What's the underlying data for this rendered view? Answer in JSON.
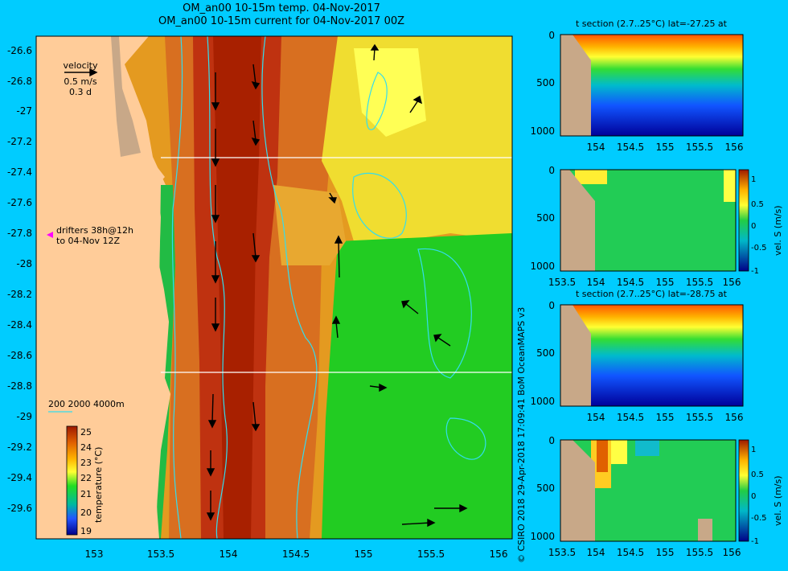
{
  "header": {
    "title_line1": "OM_an00 10-15m temp. 04-Nov-2017",
    "title_line2": "OM_an00 10-15m current for 04-Nov-2017 00Z"
  },
  "map": {
    "lat_ticks": [
      "-26.6",
      "-26.8",
      "-27",
      "-27.2",
      "-27.4",
      "-27.6",
      "-27.8",
      "-28",
      "-28.2",
      "-28.4",
      "-28.6",
      "-28.8",
      "-29",
      "-29.2",
      "-29.4",
      "-29.6"
    ],
    "lon_ticks": [
      "153",
      "153.5",
      "154",
      "154.5",
      "155",
      "155.5",
      "156"
    ],
    "velocity_legend": {
      "label": "velocity",
      "speed": "0.5 m/s",
      "time": "0.3 d"
    },
    "drifters_line1": "drifters 38h@12h",
    "drifters_line2": "to 04-Nov 12Z",
    "bathymetry_legend": "200  2000  4000m",
    "colorbar": {
      "label": "temperature (°C)",
      "ticks": [
        "25",
        "24",
        "23",
        "22",
        "21",
        "20",
        "19"
      ]
    },
    "section_lines_lat": [
      "-27.25",
      "-28.75"
    ]
  },
  "sections": [
    {
      "title": "t section (2.7..25°C) lat=-27.25 at",
      "type": "temperature",
      "y_ticks": [
        "0",
        "500",
        "1000"
      ],
      "x_ticks": [
        "154",
        "154.5",
        "155",
        "155.5",
        "156"
      ]
    },
    {
      "title": "",
      "type": "velocity",
      "y_ticks": [
        "0",
        "500",
        "1000"
      ],
      "x_ticks": [
        "153.5",
        "154",
        "154.5",
        "155",
        "155.5",
        "156"
      ],
      "cbar_ticks": [
        "1",
        "0.5",
        "0",
        "-0.5",
        "-1"
      ],
      "cbar_label": "vel. S (m/s)"
    },
    {
      "title": "t section (2.7..25°C) lat=-28.75 at",
      "type": "temperature",
      "y_ticks": [
        "0",
        "500",
        "1000"
      ],
      "x_ticks": [
        "154",
        "154.5",
        "155",
        "155.5",
        "156"
      ]
    },
    {
      "title": "",
      "type": "velocity",
      "y_ticks": [
        "0",
        "500",
        "1000"
      ],
      "x_ticks": [
        "153.5",
        "154",
        "154.5",
        "155",
        "155.5",
        "156"
      ],
      "cbar_ticks": [
        "1",
        "0.5",
        "0",
        "-0.5",
        "-1"
      ],
      "cbar_label": "vel. S (m/s)"
    }
  ],
  "credit": "© CSIRO 2018  29-Apr-2018 17:09:41 BoM OceanMAPS v3"
}
